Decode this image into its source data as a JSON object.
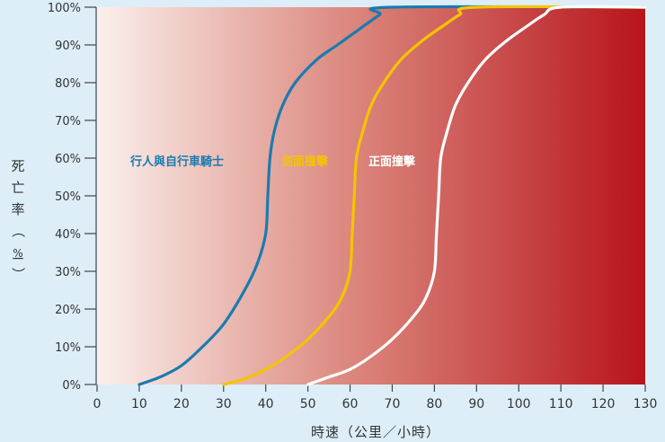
{
  "chart_data": {
    "type": "line",
    "title": "",
    "xlabel": "時速（公里／小時）",
    "ylabel_chars": [
      "死",
      "亡",
      "率",
      "（",
      "%",
      "）"
    ],
    "xlim": [
      0,
      130
    ],
    "ylim": [
      0,
      100
    ],
    "x_ticks": [
      "0",
      "10",
      "20",
      "30",
      "40",
      "50",
      "60",
      "70",
      "80",
      "90",
      "100",
      "110",
      "120",
      "130"
    ],
    "y_ticks": [
      "0%",
      "10%",
      "20%",
      "30%",
      "40%",
      "50%",
      "60%",
      "70%",
      "80%",
      "90%",
      "100%"
    ],
    "grid": false,
    "background_gradient": [
      "#fbf0ec",
      "#b8141c"
    ],
    "series": [
      {
        "name": "行人與自行車騎士",
        "color": "#1a7bb0",
        "points": [
          [
            10,
            0
          ],
          [
            15,
            2
          ],
          [
            20,
            5
          ],
          [
            25,
            10
          ],
          [
            30,
            16
          ],
          [
            35,
            25
          ],
          [
            38,
            32
          ],
          [
            40,
            40
          ],
          [
            40.5,
            50
          ],
          [
            41,
            60
          ],
          [
            42,
            67
          ],
          [
            44,
            74
          ],
          [
            47,
            80
          ],
          [
            52,
            86
          ],
          [
            57,
            90
          ],
          [
            62,
            94
          ],
          [
            67,
            98
          ],
          [
            70,
            100
          ],
          [
            130,
            100
          ]
        ]
      },
      {
        "name": "側面撞擊",
        "color": "#f5c400",
        "points": [
          [
            30,
            0
          ],
          [
            35,
            1.5
          ],
          [
            40,
            4
          ],
          [
            45,
            7.5
          ],
          [
            50,
            12
          ],
          [
            55,
            18
          ],
          [
            58,
            23
          ],
          [
            60,
            30
          ],
          [
            60.5,
            40
          ],
          [
            61,
            50
          ],
          [
            61.5,
            60
          ],
          [
            63,
            67
          ],
          [
            65,
            74
          ],
          [
            68,
            80
          ],
          [
            72,
            86
          ],
          [
            77,
            91
          ],
          [
            82,
            95
          ],
          [
            86,
            98
          ],
          [
            90,
            100
          ],
          [
            130,
            100
          ]
        ]
      },
      {
        "name": "正面撞擊",
        "color": "#ffffff",
        "points": [
          [
            50,
            0
          ],
          [
            55,
            2
          ],
          [
            60,
            4
          ],
          [
            65,
            7.5
          ],
          [
            70,
            12
          ],
          [
            75,
            18
          ],
          [
            78,
            23
          ],
          [
            80,
            30
          ],
          [
            80.5,
            40
          ],
          [
            81,
            50
          ],
          [
            81.5,
            60
          ],
          [
            83,
            67
          ],
          [
            85,
            74
          ],
          [
            88,
            80
          ],
          [
            92,
            86
          ],
          [
            97,
            91
          ],
          [
            102,
            95
          ],
          [
            106,
            98
          ],
          [
            110,
            100
          ],
          [
            130,
            100
          ]
        ]
      }
    ]
  }
}
